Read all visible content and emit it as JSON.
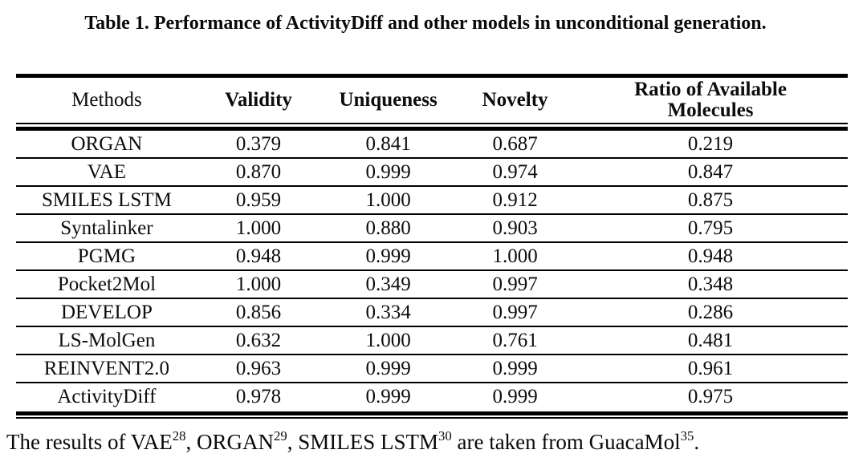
{
  "caption": "Table 1. Performance of ActivityDiff and other models in unconditional generation.",
  "colors": {
    "background": "#ffffff",
    "text": "#0d0d0d",
    "rule": "#000000"
  },
  "table": {
    "headers": {
      "methods": "Methods",
      "validity": "Validity",
      "uniqueness": "Uniqueness",
      "novelty": "Novelty",
      "ratio_line1": "Ratio of Available",
      "ratio_line2": "Molecules"
    },
    "rows": [
      {
        "method": "ORGAN",
        "validity": "0.379",
        "uniqueness": "0.841",
        "novelty": "0.687",
        "ratio": "0.219"
      },
      {
        "method": "VAE",
        "validity": "0.870",
        "uniqueness": "0.999",
        "novelty": "0.974",
        "ratio": "0.847"
      },
      {
        "method": "SMILES LSTM",
        "validity": "0.959",
        "uniqueness": "1.000",
        "novelty": "0.912",
        "ratio": "0.875"
      },
      {
        "method": "Syntalinker",
        "validity": "1.000",
        "uniqueness": "0.880",
        "novelty": "0.903",
        "ratio": "0.795"
      },
      {
        "method": "PGMG",
        "validity": "0.948",
        "uniqueness": "0.999",
        "novelty": "1.000",
        "ratio": "0.948"
      },
      {
        "method": "Pocket2Mol",
        "validity": "1.000",
        "uniqueness": "0.349",
        "novelty": "0.997",
        "ratio": "0.348"
      },
      {
        "method": "DEVELOP",
        "validity": "0.856",
        "uniqueness": "0.334",
        "novelty": "0.997",
        "ratio": "0.286"
      },
      {
        "method": "LS-MolGen",
        "validity": "0.632",
        "uniqueness": "1.000",
        "novelty": "0.761",
        "ratio": "0.481"
      },
      {
        "method": "REINVENT2.0",
        "validity": "0.963",
        "uniqueness": "0.999",
        "novelty": "0.999",
        "ratio": "0.961"
      },
      {
        "method": "ActivityDiff",
        "validity": "0.978",
        "uniqueness": "0.999",
        "novelty": "0.999",
        "ratio": "0.975"
      }
    ]
  },
  "footnote": {
    "segments": [
      {
        "text": "The results of VAE"
      },
      {
        "sup": "28"
      },
      {
        "text": ", ORGAN"
      },
      {
        "sup": "29"
      },
      {
        "text": ", SMILES LSTM"
      },
      {
        "sup": "30"
      },
      {
        "text": " are taken from GuacaMol"
      },
      {
        "sup": "35"
      },
      {
        "text": "."
      }
    ]
  }
}
